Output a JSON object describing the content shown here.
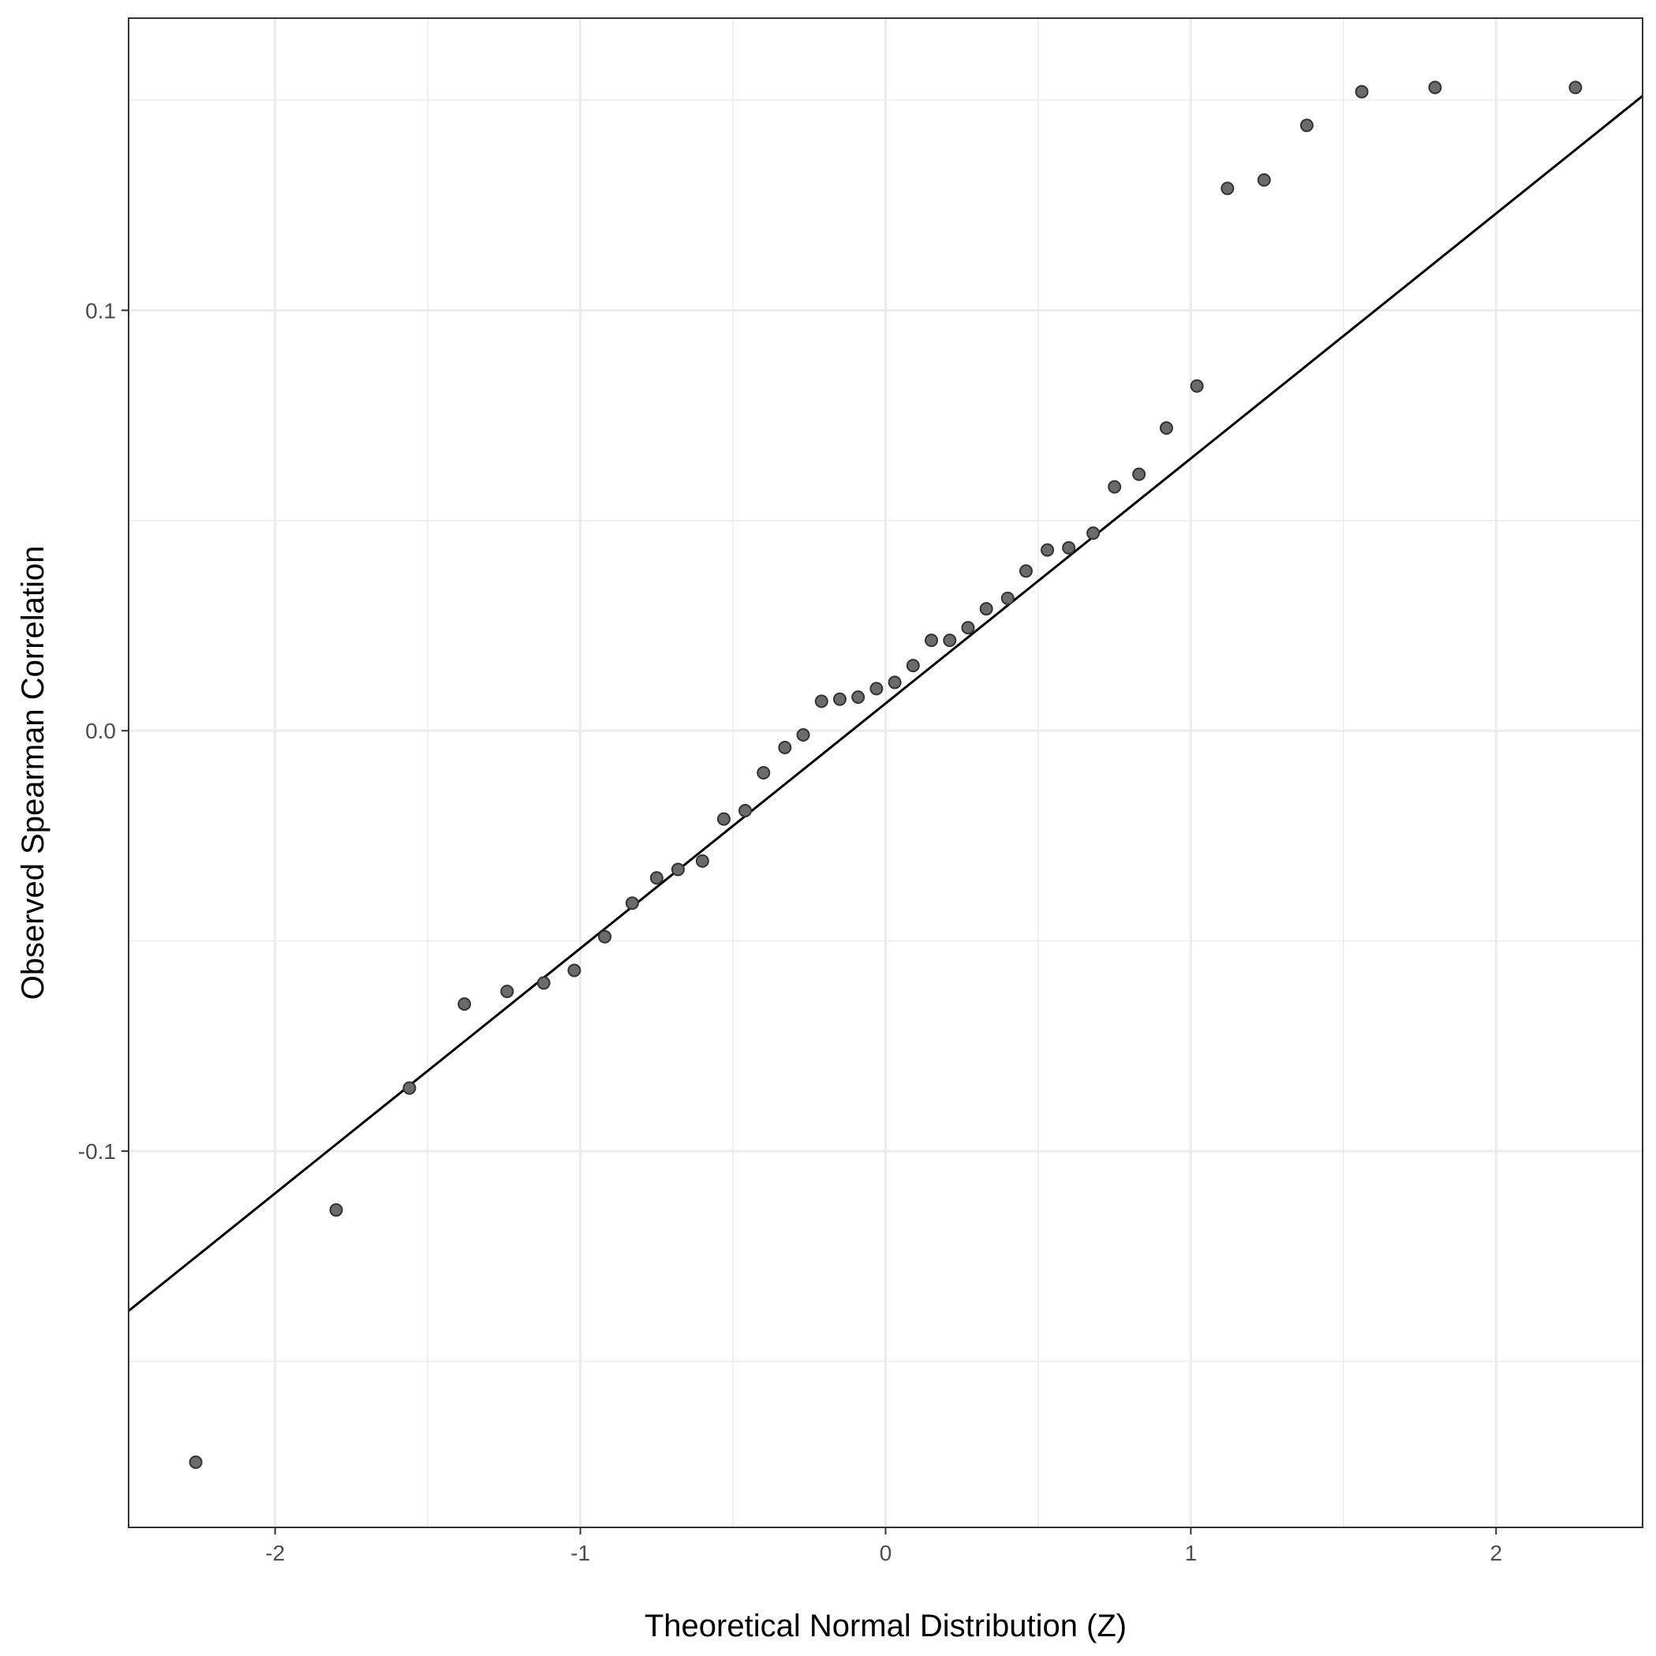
{
  "chart_data": {
    "type": "scatter",
    "title": "",
    "xlabel": "Theoretical Normal Distribution (Z)",
    "ylabel": "Observed Spearman Correlation",
    "xlim": [
      -2.48,
      2.48
    ],
    "ylim": [
      -0.1895,
      0.1695
    ],
    "xticks": [
      {
        "value": -2,
        "label": "-2"
      },
      {
        "value": -1,
        "label": "-1"
      },
      {
        "value": 0,
        "label": "0"
      },
      {
        "value": 1,
        "label": "1"
      },
      {
        "value": 2,
        "label": "2"
      }
    ],
    "yticks": [
      {
        "value": -0.1,
        "label": "-0.1"
      },
      {
        "value": 0,
        "label": "0.0"
      },
      {
        "value": 0.1,
        "label": "0.1"
      }
    ],
    "x_minor": [
      -1.5,
      -0.5,
      0.5,
      1.5
    ],
    "y_minor": [
      -0.15,
      -0.05,
      0.05,
      0.15
    ],
    "grid": true,
    "point_color": "#6b6b6b",
    "line_color": "#000000",
    "reference_line": {
      "x": [
        -2.48,
        2.48
      ],
      "y": [
        -0.138,
        0.151
      ]
    },
    "series": [
      {
        "x": [
          -2.26,
          -1.8,
          -1.56,
          -1.38,
          -1.24,
          -1.12,
          -1.02,
          -0.92,
          -0.83,
          -0.75,
          -0.68,
          -0.6,
          -0.53,
          -0.46,
          -0.4,
          -0.33,
          -0.27,
          -0.21,
          -0.15,
          -0.09,
          -0.03,
          0.03,
          0.09,
          0.15,
          0.21,
          0.27,
          0.33,
          0.4,
          0.46,
          0.53,
          0.6,
          0.68,
          0.75,
          0.83,
          0.92,
          1.02,
          1.12,
          1.24,
          1.38,
          1.56,
          1.8,
          2.26
        ],
        "y": [
          -0.174,
          -0.114,
          -0.085,
          -0.065,
          -0.062,
          -0.06,
          -0.057,
          -0.049,
          -0.041,
          -0.035,
          -0.033,
          -0.031,
          -0.021,
          -0.019,
          -0.01,
          -0.004,
          -0.001,
          0.007,
          0.0075,
          0.008,
          0.01,
          0.0115,
          0.0155,
          0.0215,
          0.0215,
          0.0245,
          0.029,
          0.0315,
          0.038,
          0.043,
          0.0435,
          0.047,
          0.058,
          0.061,
          0.072,
          0.082,
          0.129,
          0.131,
          0.144,
          0.152,
          0.153,
          0.153
        ]
      }
    ]
  }
}
